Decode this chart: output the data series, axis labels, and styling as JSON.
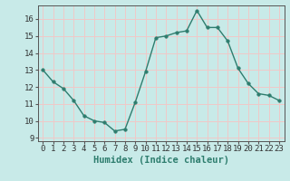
{
  "x": [
    0,
    1,
    2,
    3,
    4,
    5,
    6,
    7,
    8,
    9,
    10,
    11,
    12,
    13,
    14,
    15,
    16,
    17,
    18,
    19,
    20,
    21,
    22,
    23
  ],
  "y": [
    13.0,
    12.3,
    11.9,
    11.2,
    10.3,
    10.0,
    9.9,
    9.4,
    9.5,
    11.1,
    12.9,
    14.9,
    15.0,
    15.2,
    15.3,
    16.5,
    15.5,
    15.5,
    14.7,
    13.1,
    12.2,
    11.6,
    11.5,
    11.2
  ],
  "line_color": "#2e7d6e",
  "marker": "o",
  "marker_size": 2.5,
  "bg_color": "#c8eae8",
  "grid_color": "#f0c8c8",
  "xlabel": "Humidex (Indice chaleur)",
  "ylim": [
    8.8,
    16.8
  ],
  "xlim": [
    -0.5,
    23.5
  ],
  "yticks": [
    9,
    10,
    11,
    12,
    13,
    14,
    15,
    16
  ],
  "xticks": [
    0,
    1,
    2,
    3,
    4,
    5,
    6,
    7,
    8,
    9,
    10,
    11,
    12,
    13,
    14,
    15,
    16,
    17,
    18,
    19,
    20,
    21,
    22,
    23
  ],
  "xlabel_fontsize": 7.5,
  "tick_fontsize": 6.5,
  "line_width": 1.0,
  "spine_color": "#555555"
}
